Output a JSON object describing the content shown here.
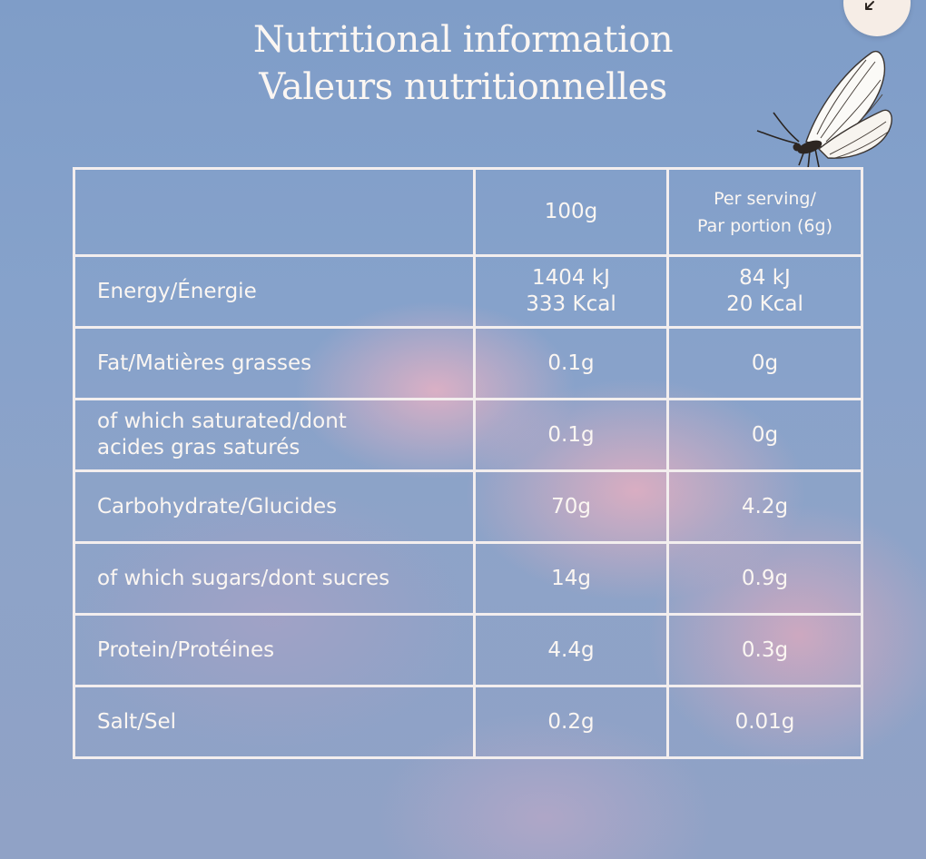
{
  "title": {
    "line1": "Nutritional information",
    "line2": "Valeurs nutritionnelles"
  },
  "expand_button": {
    "icon": "arrow-expand-icon"
  },
  "decoration": {
    "icon": "butterfly-icon"
  },
  "table": {
    "headers": {
      "label": "",
      "per_100g": "100g",
      "per_serving_line1": "Per serving/",
      "per_serving_line2": "Par portion (6g)"
    },
    "rows": [
      {
        "label_line1": "Energy/Énergie",
        "label_line2": "",
        "v100_line1": "1404 kJ",
        "v100_line2": "333 Kcal",
        "vserv_line1": "84 kJ",
        "vserv_line2": "20 Kcal"
      },
      {
        "label_line1": "Fat/Matières grasses",
        "label_line2": "",
        "v100_line1": "0.1g",
        "vserv_line1": "0g"
      },
      {
        "label_line1": "of which saturated/dont",
        "label_line2": "acides gras saturés",
        "v100_line1": "0.1g",
        "vserv_line1": "0g"
      },
      {
        "label_line1": "Carbohydrate/Glucides",
        "label_line2": "",
        "v100_line1": "70g",
        "vserv_line1": "4.2g"
      },
      {
        "label_line1": "of which sugars/dont sucres",
        "label_line2": "",
        "v100_line1": "14g",
        "vserv_line1": "0.9g"
      },
      {
        "label_line1": "Protein/Protéines",
        "label_line2": "",
        "v100_line1": "4.4g",
        "vserv_line1": "0.3g"
      },
      {
        "label_line1": "Salt/Sel",
        "label_line2": "",
        "v100_line1": "0.2g",
        "vserv_line1": "0.01g"
      }
    ]
  }
}
